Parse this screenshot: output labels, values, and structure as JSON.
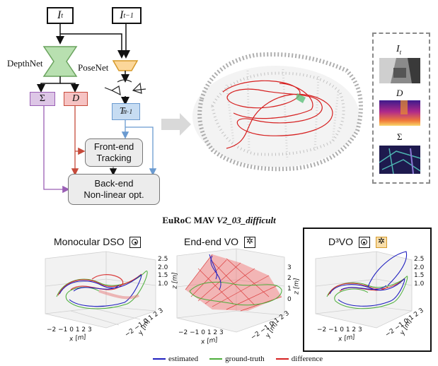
{
  "pipeline": {
    "input_current": "I_t",
    "input_previous": "I_{t-1}",
    "depthnet_label": "DepthNet",
    "posenet_label": "PoseNet",
    "sigma_label": "Σ",
    "depth_label": "D",
    "pose_label": "T_t^{t-1}",
    "frontend_label": "Front-end\nTracking",
    "backend_label": "Back-end\nNon-linear opt."
  },
  "side_panel": {
    "image_label": "I_t",
    "depth_label": "D",
    "uncertainty_label": "Σ"
  },
  "dataset_title_prefix": "EuRoC MAV ",
  "dataset_title_sequence": "V2_03_difficult",
  "plots": [
    {
      "title": "Monocular DSO",
      "icons": [
        "dot"
      ]
    },
    {
      "title": "End-end VO",
      "icons": [
        "net"
      ]
    },
    {
      "title": "D³VO",
      "icons": [
        "dot",
        "net"
      ]
    }
  ],
  "axis_labels": {
    "x": "x [m]",
    "y": "y [m]",
    "z": "z [m]"
  },
  "legend": [
    {
      "label": "estimated",
      "color": "#1f1fbf"
    },
    {
      "label": "ground-truth",
      "color": "#4cae3a"
    },
    {
      "label": "difference",
      "color": "#d62020"
    }
  ],
  "colors": {
    "depthnet": "#b8e0b0",
    "posenet": "#fcd79a",
    "sigma_box": "#ddc6e6",
    "depth_box": "#f6c3c3",
    "pose_box": "#c6dcf2",
    "purple_arrow": "#9a5fb5",
    "red_arrow": "#c64a3a",
    "blue_arrow": "#6a9ad0"
  }
}
